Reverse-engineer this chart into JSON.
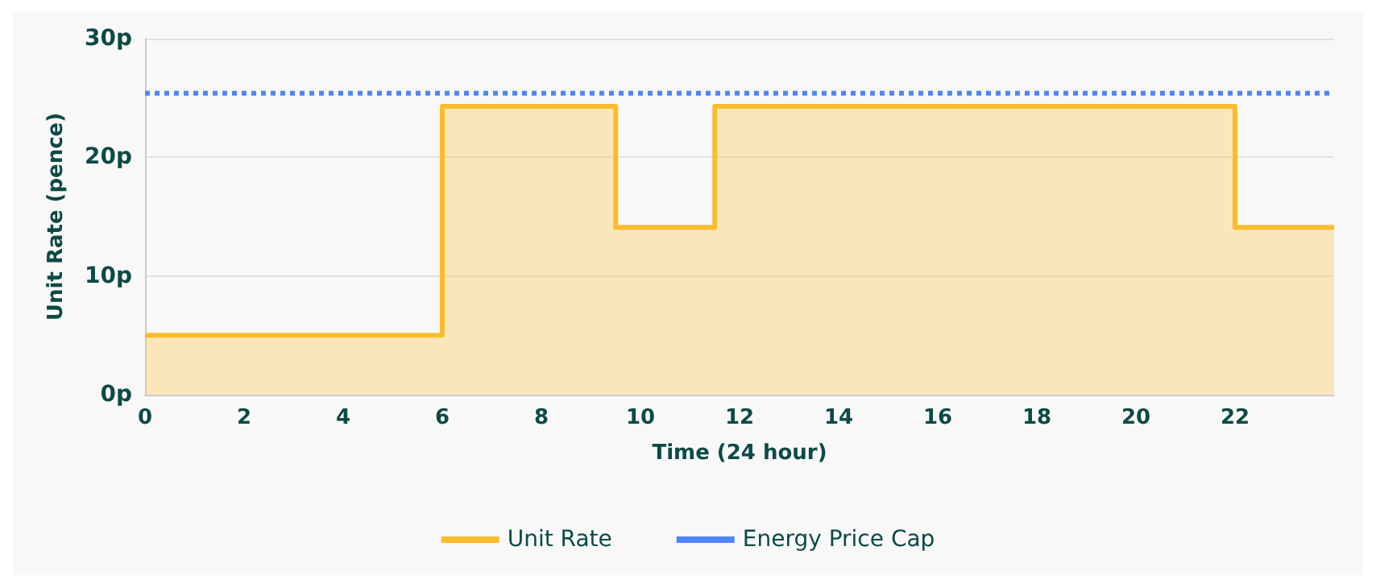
{
  "chart_data": {
    "type": "area",
    "xlabel": "Time (24 hour)",
    "ylabel": "Unit Rate (pence)",
    "xlim": [
      0,
      24
    ],
    "xticks": [
      0,
      2,
      4,
      6,
      8,
      10,
      12,
      14,
      16,
      18,
      20,
      22
    ],
    "ylim": [
      0,
      30
    ],
    "yticks": [
      {
        "value": 0,
        "label": "0p"
      },
      {
        "value": 10,
        "label": "10p"
      },
      {
        "value": 20,
        "label": "20p"
      },
      {
        "value": 30,
        "label": "30p"
      }
    ],
    "grid": "y",
    "legend": "bottom",
    "marker": "none",
    "series": [
      {
        "name": "Unit Rate",
        "color": "#fbbc2e",
        "line_style": "solid",
        "x": [
          0,
          6,
          6,
          9.5,
          9.5,
          11.5,
          11.5,
          22,
          22,
          24
        ],
        "values": [
          5,
          5,
          24.3,
          24.3,
          14.1,
          14.1,
          24.3,
          24.3,
          14.1,
          14.1
        ]
      },
      {
        "name": "Energy Price Cap",
        "type": "line",
        "color": "#4f86f7",
        "line_style": "dotted",
        "x": [
          0,
          24
        ],
        "values": [
          25.4,
          25.4
        ]
      }
    ]
  }
}
